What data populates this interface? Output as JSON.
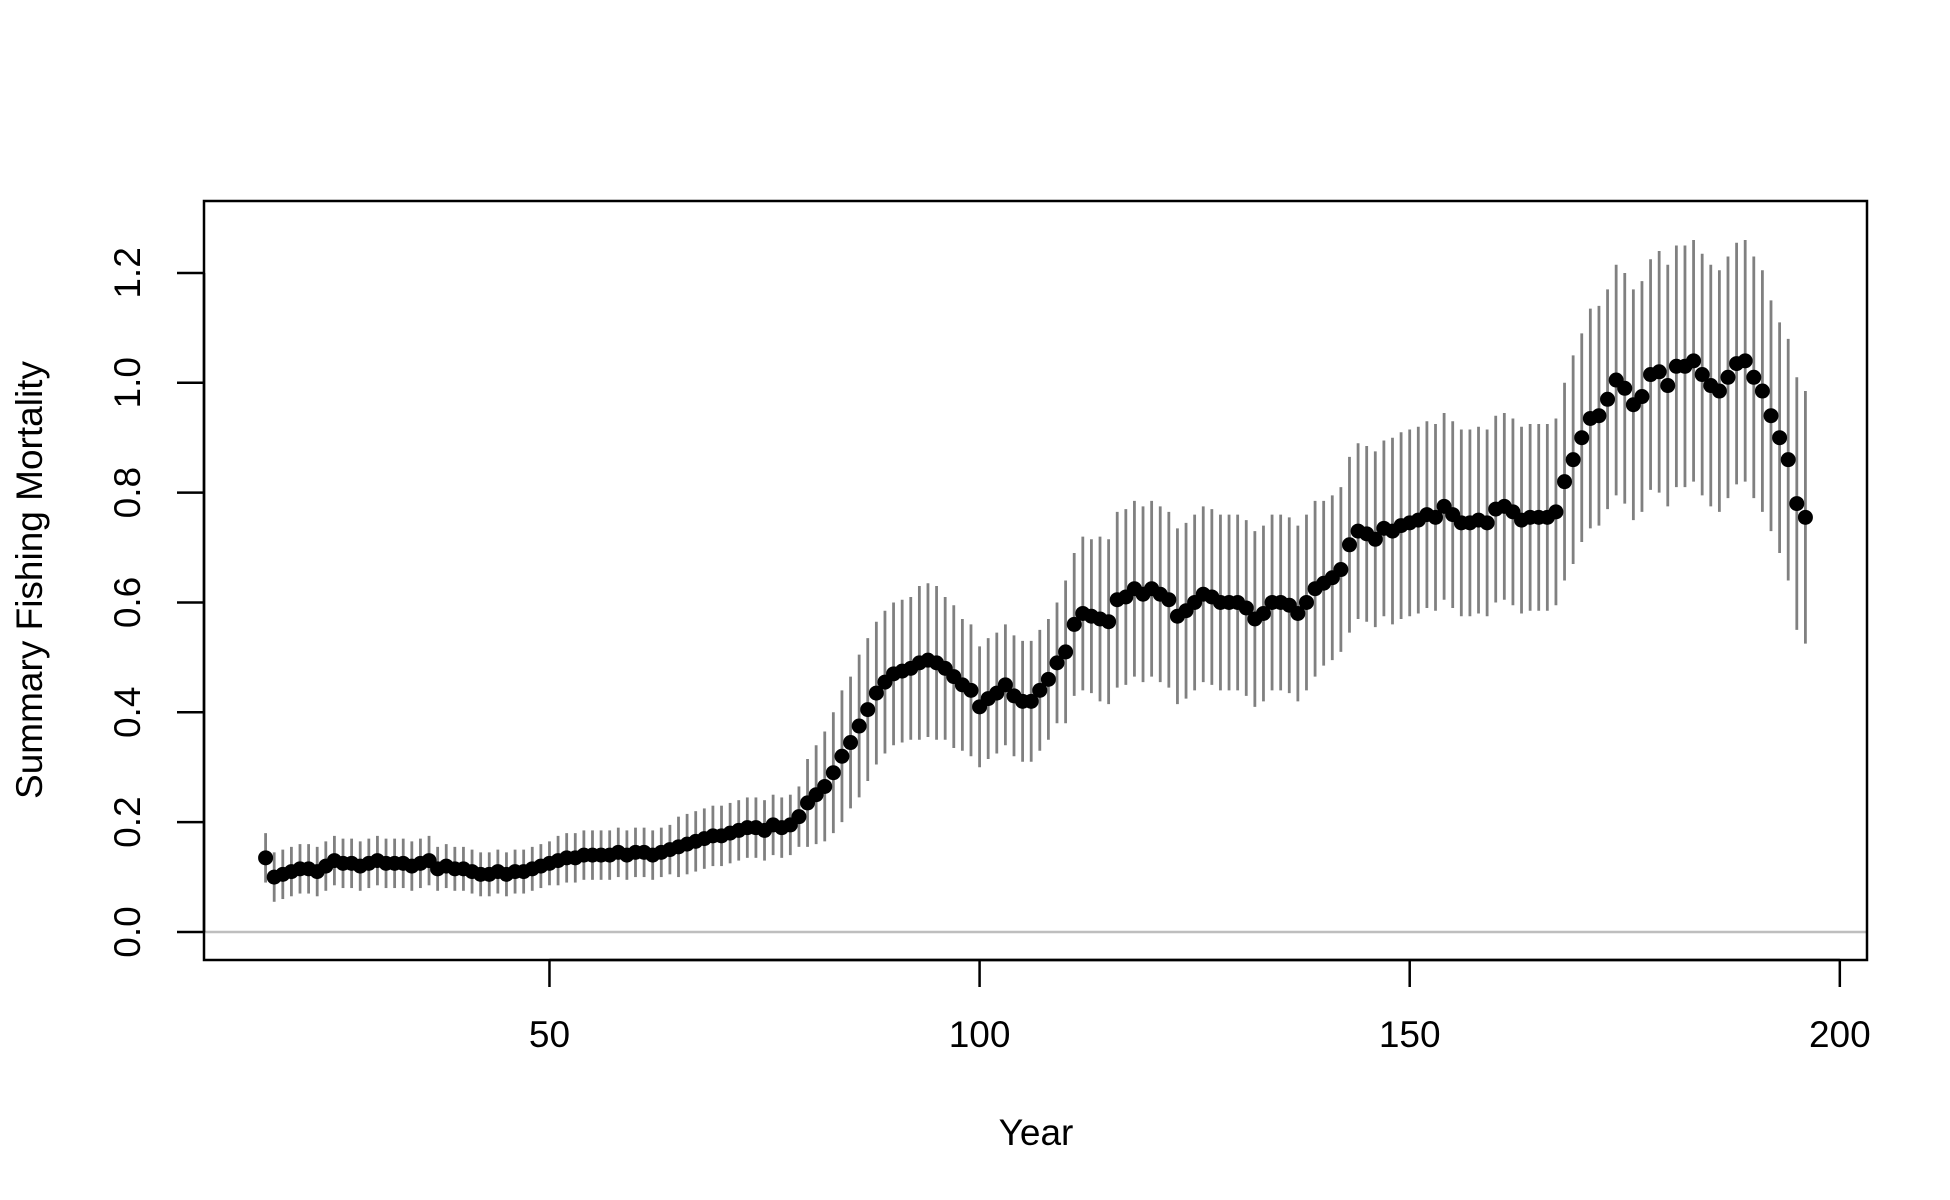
{
  "chart_data": {
    "type": "scatter",
    "x_label": "Year",
    "y_label": "Summary Fishing Mortality",
    "x": [
      17,
      18,
      19,
      20,
      21,
      22,
      23,
      24,
      25,
      26,
      27,
      28,
      29,
      30,
      31,
      32,
      33,
      34,
      35,
      36,
      37,
      38,
      39,
      40,
      41,
      42,
      43,
      44,
      45,
      46,
      47,
      48,
      49,
      50,
      51,
      52,
      53,
      54,
      55,
      56,
      57,
      58,
      59,
      60,
      61,
      62,
      63,
      64,
      65,
      66,
      67,
      68,
      69,
      70,
      71,
      72,
      73,
      74,
      75,
      76,
      77,
      78,
      79,
      80,
      81,
      82,
      83,
      84,
      85,
      86,
      87,
      88,
      89,
      90,
      91,
      92,
      93,
      94,
      95,
      96,
      97,
      98,
      99,
      100,
      101,
      102,
      103,
      104,
      105,
      106,
      107,
      108,
      109,
      110,
      111,
      112,
      113,
      114,
      115,
      116,
      117,
      118,
      119,
      120,
      121,
      122,
      123,
      124,
      125,
      126,
      127,
      128,
      129,
      130,
      131,
      132,
      133,
      134,
      135,
      136,
      137,
      138,
      139,
      140,
      141,
      142,
      143,
      144,
      145,
      146,
      147,
      148,
      149,
      150,
      151,
      152,
      153,
      154,
      155,
      156,
      157,
      158,
      159,
      160,
      161,
      162,
      163,
      164,
      165,
      166,
      167,
      168,
      169,
      170,
      171,
      172,
      173,
      174,
      175,
      176,
      177,
      178,
      179,
      180,
      181,
      182,
      183,
      184,
      185,
      186,
      187,
      188,
      189,
      190,
      191,
      192,
      193,
      194,
      195,
      196
    ],
    "values": [
      0.135,
      0.1,
      0.105,
      0.11,
      0.115,
      0.115,
      0.11,
      0.12,
      0.13,
      0.125,
      0.125,
      0.12,
      0.125,
      0.13,
      0.125,
      0.125,
      0.125,
      0.12,
      0.125,
      0.13,
      0.115,
      0.12,
      0.115,
      0.115,
      0.11,
      0.105,
      0.105,
      0.11,
      0.105,
      0.11,
      0.11,
      0.115,
      0.12,
      0.125,
      0.13,
      0.135,
      0.135,
      0.14,
      0.14,
      0.14,
      0.14,
      0.145,
      0.14,
      0.145,
      0.145,
      0.14,
      0.145,
      0.15,
      0.155,
      0.16,
      0.165,
      0.17,
      0.175,
      0.175,
      0.18,
      0.185,
      0.19,
      0.19,
      0.185,
      0.195,
      0.19,
      0.195,
      0.21,
      0.235,
      0.25,
      0.265,
      0.29,
      0.32,
      0.345,
      0.375,
      0.405,
      0.435,
      0.455,
      0.47,
      0.475,
      0.48,
      0.49,
      0.495,
      0.49,
      0.48,
      0.465,
      0.45,
      0.44,
      0.41,
      0.425,
      0.435,
      0.45,
      0.43,
      0.42,
      0.42,
      0.44,
      0.46,
      0.49,
      0.51,
      0.56,
      0.58,
      0.575,
      0.57,
      0.565,
      0.605,
      0.61,
      0.625,
      0.615,
      0.625,
      0.615,
      0.605,
      0.575,
      0.585,
      0.6,
      0.615,
      0.61,
      0.6,
      0.6,
      0.6,
      0.59,
      0.57,
      0.58,
      0.6,
      0.6,
      0.595,
      0.58,
      0.6,
      0.625,
      0.635,
      0.645,
      0.66,
      0.705,
      0.73,
      0.725,
      0.715,
      0.735,
      0.73,
      0.74,
      0.745,
      0.75,
      0.76,
      0.755,
      0.775,
      0.76,
      0.745,
      0.745,
      0.75,
      0.745,
      0.77,
      0.775,
      0.765,
      0.75,
      0.755,
      0.755,
      0.755,
      0.765,
      0.82,
      0.86,
      0.9,
      0.935,
      0.94,
      0.97,
      1.005,
      0.99,
      0.96,
      0.975,
      1.015,
      1.02,
      0.995,
      1.03,
      1.03,
      1.04,
      1.015,
      0.995,
      0.985,
      1.01,
      1.035,
      1.04,
      1.01,
      0.985,
      0.94,
      0.9,
      0.86,
      0.78,
      0.755
    ],
    "errors": [
      0.045,
      0.045,
      0.045,
      0.045,
      0.045,
      0.045,
      0.045,
      0.045,
      0.045,
      0.045,
      0.045,
      0.045,
      0.045,
      0.045,
      0.045,
      0.045,
      0.045,
      0.045,
      0.045,
      0.045,
      0.04,
      0.04,
      0.04,
      0.04,
      0.04,
      0.04,
      0.04,
      0.04,
      0.04,
      0.04,
      0.04,
      0.04,
      0.04,
      0.04,
      0.045,
      0.045,
      0.045,
      0.045,
      0.045,
      0.045,
      0.045,
      0.045,
      0.045,
      0.045,
      0.045,
      0.045,
      0.045,
      0.045,
      0.055,
      0.055,
      0.055,
      0.055,
      0.055,
      0.055,
      0.055,
      0.055,
      0.055,
      0.055,
      0.055,
      0.055,
      0.055,
      0.055,
      0.055,
      0.08,
      0.09,
      0.1,
      0.11,
      0.12,
      0.12,
      0.13,
      0.13,
      0.13,
      0.13,
      0.13,
      0.13,
      0.13,
      0.14,
      0.14,
      0.14,
      0.13,
      0.13,
      0.12,
      0.12,
      0.11,
      0.11,
      0.11,
      0.11,
      0.11,
      0.11,
      0.11,
      0.11,
      0.11,
      0.11,
      0.13,
      0.13,
      0.14,
      0.14,
      0.15,
      0.15,
      0.16,
      0.16,
      0.16,
      0.16,
      0.16,
      0.16,
      0.16,
      0.16,
      0.16,
      0.16,
      0.16,
      0.16,
      0.16,
      0.16,
      0.16,
      0.16,
      0.16,
      0.16,
      0.16,
      0.16,
      0.16,
      0.16,
      0.16,
      0.16,
      0.15,
      0.15,
      0.15,
      0.16,
      0.16,
      0.16,
      0.16,
      0.16,
      0.17,
      0.17,
      0.17,
      0.17,
      0.17,
      0.17,
      0.17,
      0.17,
      0.17,
      0.17,
      0.17,
      0.17,
      0.17,
      0.17,
      0.17,
      0.17,
      0.17,
      0.17,
      0.17,
      0.17,
      0.18,
      0.19,
      0.19,
      0.2,
      0.2,
      0.2,
      0.21,
      0.21,
      0.21,
      0.21,
      0.21,
      0.22,
      0.22,
      0.22,
      0.22,
      0.22,
      0.22,
      0.22,
      0.22,
      0.22,
      0.22,
      0.22,
      0.22,
      0.22,
      0.21,
      0.21,
      0.22,
      0.23,
      0.23
    ],
    "color": "#000000",
    "error_color": "#808080",
    "hline": 0,
    "hline_color": "#bebebe",
    "xlim": [
      9.84,
      203.16
    ],
    "xticks": [
      50,
      100,
      150,
      200
    ],
    "ylim": [
      -0.051,
      1.331
    ],
    "yticks": [
      {
        "value": 0,
        "label": "0.0"
      },
      0.2,
      0.4,
      0.6,
      0.8,
      {
        "value": 1,
        "label": "1.0"
      },
      1.2
    ]
  }
}
